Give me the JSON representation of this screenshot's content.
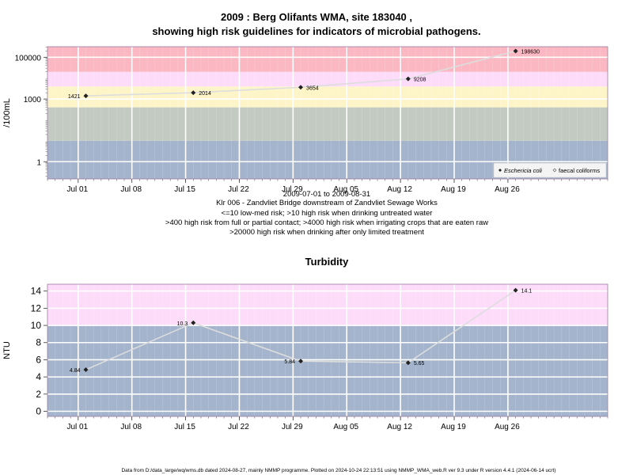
{
  "header": {
    "title_line1": "2009 : Berg Olifants WMA, site 183040 ,",
    "title_line2": "showing high risk guidelines for indicators of microbial pathogens."
  },
  "footer": {
    "credit": "Data from D:/data_large/wq/wms.db dated 2024-08-27, mainly NMMP programme. Plotted on 2024-10-24 22:13:51 using NMMP_WMA_web.R ver 9.3 under R version 4.4.1 (2024-06-14 ucrt)"
  },
  "colors": {
    "band_blue": "#a3b4cc",
    "band_green": "#c2cac2",
    "band_yellow": "#fdf5c8",
    "band_pink_light": "#fddcfa",
    "band_pink": "#fbb8c2",
    "line": "#dddddd",
    "grid": "#ffffff",
    "marker": "#222222",
    "frame": "#9a7aa0"
  },
  "chart_data": [
    {
      "type": "line",
      "id": "microbial",
      "title": "",
      "ylabel": "/100mL",
      "yscale": "log",
      "ylim": [
        0.15,
        320000
      ],
      "xlim": [
        "2009-06-27",
        "2009-09-08"
      ],
      "yticks": [
        1,
        1000,
        100000
      ],
      "ytick_labels": [
        "1",
        "1000",
        "100000"
      ],
      "xticks": [
        "2009-07-01",
        "2009-07-08",
        "2009-07-15",
        "2009-07-22",
        "2009-07-29",
        "2009-08-05",
        "2009-08-12",
        "2009-08-19",
        "2009-08-26"
      ],
      "xtick_labels": [
        "Jul 01",
        "Jul 08",
        "Jul 15",
        "Jul 22",
        "Jul 29",
        "Aug 05",
        "Aug 12",
        "Aug 19",
        "Aug 26"
      ],
      "bands": [
        {
          "from": 0.15,
          "to": 10,
          "color": "#a3b4cc"
        },
        {
          "from": 10,
          "to": 400,
          "color": "#c2cac2"
        },
        {
          "from": 400,
          "to": 4000,
          "color": "#fdf5c8"
        },
        {
          "from": 4000,
          "to": 20000,
          "color": "#fddcfa"
        },
        {
          "from": 20000,
          "to": 320000,
          "color": "#fbb8c2"
        }
      ],
      "series": [
        {
          "name": "Eschericia coli",
          "x": [
            "2009-07-02",
            "2009-07-16",
            "2009-07-30",
            "2009-08-13",
            "2009-08-27"
          ],
          "y": [
            1421,
            2014,
            3654,
            9208,
            198630
          ],
          "labels": [
            "1421",
            "2014",
            "3654",
            "9208",
            "198630"
          ]
        }
      ],
      "legend": {
        "position": "bottom-right",
        "entries": [
          "Eschericia coli",
          "faecal coliforms"
        ]
      },
      "annotations": [
        "2009-07-01 to 2009-08-31",
        "Klr 006 - Zandvliet Bridge downstream of Zandvliet Sewage Works",
        "<=10 low-med risk; >10 high risk when drinking untreated water",
        ">400 high risk from full or partial contact; >4000 high risk when irrigating crops that are eaten raw",
        ">20000 high risk when drinking after only limited treatment"
      ]
    },
    {
      "type": "line",
      "id": "turbidity",
      "title": "Turbidity",
      "ylabel": "NTU",
      "yscale": "linear",
      "ylim": [
        -0.6,
        14.8
      ],
      "xlim": [
        "2009-06-27",
        "2009-09-08"
      ],
      "yticks": [
        0,
        2,
        4,
        6,
        8,
        10,
        12,
        14
      ],
      "ytick_labels": [
        "0",
        "2",
        "4",
        "6",
        "8",
        "10",
        "12",
        "14"
      ],
      "xticks": [
        "2009-07-01",
        "2009-07-08",
        "2009-07-15",
        "2009-07-22",
        "2009-07-29",
        "2009-08-05",
        "2009-08-12",
        "2009-08-19",
        "2009-08-26"
      ],
      "xtick_labels": [
        "Jul 01",
        "Jul 08",
        "Jul 15",
        "Jul 22",
        "Jul 29",
        "Aug 05",
        "Aug 12",
        "Aug 19",
        "Aug 26"
      ],
      "bands": [
        {
          "from": -0.6,
          "to": 10,
          "color": "#a3b4cc"
        },
        {
          "from": 10,
          "to": 14.8,
          "color": "#fddcfa"
        }
      ],
      "series": [
        {
          "name": "",
          "x": [
            "2009-07-02",
            "2009-07-16",
            "2009-07-30",
            "2009-08-13",
            "2009-08-27"
          ],
          "y": [
            4.84,
            10.3,
            5.84,
            5.65,
            14.1
          ],
          "labels": [
            "4.84",
            "10.3",
            "5.84",
            "5.65",
            "14.1"
          ]
        }
      ]
    }
  ]
}
